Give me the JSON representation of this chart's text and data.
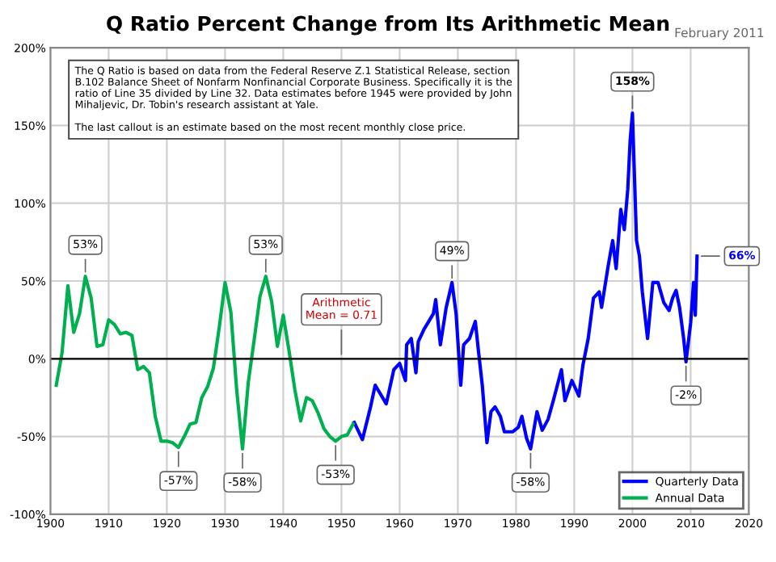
{
  "chart_data": {
    "type": "line",
    "title": "Q Ratio Percent Change from Its Arithmetic Mean",
    "subtitle": "February 2011",
    "series": [
      {
        "name": "Quarterly Data",
        "color": "#0000ff",
        "x": [
          1952.2,
          1953.6,
          1955,
          1955.8,
          1957.7,
          1959,
          1960,
          1961,
          1961.2,
          1962,
          1962.8,
          1963.2,
          1964.2,
          1965,
          1965.8,
          1966.2,
          1967,
          1968,
          1969,
          1969.7,
          1970.5,
          1971,
          1972,
          1973,
          1973.6,
          1974.2,
          1975,
          1975.7,
          1976.4,
          1977.3,
          1978,
          1979.4,
          1980.4,
          1981,
          1981.8,
          1982.5,
          1983.6,
          1984.5,
          1985.5,
          1986.4,
          1987.8,
          1988.4,
          1989.6,
          1990.8,
          1991.5,
          1992.4,
          1993.3,
          1994.3,
          1994.7,
          1995.8,
          1996.6,
          1997.2,
          1998,
          1998.6,
          1999.2,
          1999.6,
          2000,
          2000.7,
          2001.2,
          2001.7,
          2002.6,
          2003.5,
          2004.4,
          2005.4,
          2006.3,
          2006.9,
          2007.5,
          2008.1,
          2008.8,
          2009.2,
          2010,
          2010.5,
          2010.8,
          2011.1
        ],
        "values": [
          -41,
          -52,
          -31,
          -17,
          -29,
          -7,
          -3,
          -14,
          9,
          13,
          -9,
          11,
          19,
          24,
          29,
          38,
          9,
          33,
          49,
          29,
          -17,
          9,
          13,
          24,
          3,
          -17,
          -54,
          -34,
          -31,
          -37,
          -47,
          -47,
          -44,
          -37,
          -51,
          -58,
          -34,
          -46,
          -39,
          -27,
          -7,
          -27,
          -14,
          -24,
          -4,
          13,
          39,
          43,
          33,
          59,
          76,
          58,
          96,
          83,
          109,
          140,
          158,
          76,
          66,
          43,
          13,
          49,
          49,
          36,
          31,
          39,
          44,
          33,
          13,
          -2,
          23,
          49,
          28,
          66
        ]
      },
      {
        "name": "Annual Data",
        "color": "#00b050",
        "x": [
          1901,
          1902,
          1903,
          1904,
          1905,
          1906,
          1907,
          1908,
          1909,
          1910,
          1911,
          1912,
          1913,
          1914,
          1915,
          1916,
          1917,
          1918,
          1919,
          1920,
          1921,
          1922,
          1923,
          1924,
          1925,
          1926,
          1927,
          1928,
          1929,
          1930,
          1931,
          1932,
          1933,
          1934,
          1935,
          1936,
          1937,
          1938,
          1939,
          1940,
          1941,
          1942,
          1943,
          1944,
          1945,
          1946,
          1947,
          1948,
          1949,
          1950,
          1951,
          1952
        ],
        "values": [
          -17,
          4,
          47,
          17,
          29,
          53,
          39,
          8,
          9,
          25,
          22,
          16,
          17,
          15,
          -7,
          -5,
          -9,
          -37,
          -53,
          -53,
          -54,
          -57,
          -50,
          -42,
          -41,
          -25,
          -18,
          -6,
          20,
          49,
          30,
          -20,
          -58,
          -15,
          12,
          40,
          53,
          37,
          8,
          28,
          5,
          -20,
          -40,
          -25,
          -27,
          -35,
          -45,
          -50,
          -53,
          -50,
          -49,
          -42
        ]
      }
    ],
    "xlim": [
      1900,
      2020
    ],
    "xticks": [
      1900,
      1910,
      1920,
      1930,
      1940,
      1950,
      1960,
      1970,
      1980,
      1990,
      2000,
      2010,
      2020
    ],
    "ylim": [
      -100,
      200
    ],
    "yticks": [
      {
        "value": -100,
        "label": "-100%"
      },
      {
        "value": -50,
        "label": "-50%"
      },
      {
        "value": 0,
        "label": "0%"
      },
      {
        "value": 50,
        "label": "50%"
      },
      {
        "value": 100,
        "label": "100%"
      },
      {
        "value": 150,
        "label": "150%"
      },
      {
        "value": 200,
        "label": "200%"
      }
    ],
    "ref_lines": [
      {
        "axis": "y",
        "value": 0,
        "color": "#000000"
      }
    ],
    "grid": true,
    "legend": "bottom right",
    "marker": "none",
    "line_style": "solid",
    "annotations": [
      "The Q Ratio is based on data from the Federal Reserve Z.1 Statistical Release, section\nB.102 Balance Sheet of Nonfarm Nonfinancial Corporate Business. Specifically it is the\nratio of Line 35 divided by Line 32. Data estimates before 1945 were provided by John\nMihaljevic, Dr. Tobin's research assistant at Yale.\n\nThe last callout is an estimate based on the most recent monthly close price.",
      {
        "text": "53%",
        "x": 1906,
        "y": 53
      },
      {
        "text": "-57%",
        "x": 1922,
        "y": -57
      },
      {
        "text": "53%",
        "x": 1937,
        "y": 53
      },
      {
        "text": "-58%",
        "x": 1933,
        "y": -58
      },
      {
        "text": "-53%",
        "x": 1949,
        "y": -53
      },
      {
        "text": "Arithmetic\nMean = 0.71",
        "x": 1950,
        "y": 0
      },
      {
        "text": "49%",
        "x": 1969,
        "y": 49
      },
      {
        "text": "-58%",
        "x": 1982.5,
        "y": -58
      },
      {
        "text": "158%",
        "x": 2000,
        "y": 158
      },
      {
        "text": "-2%",
        "x": 2009.2,
        "y": -2
      },
      {
        "text": "66%",
        "x": 2011.1,
        "y": 66
      }
    ]
  }
}
